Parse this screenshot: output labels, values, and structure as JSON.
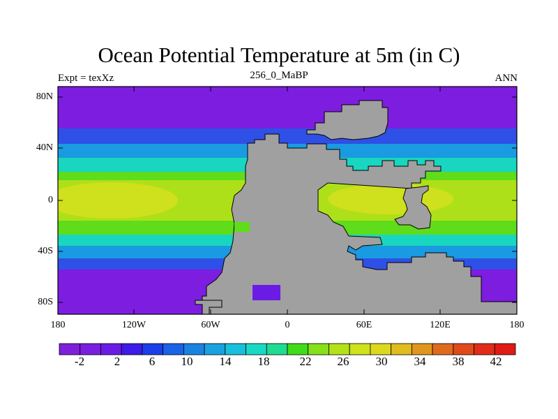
{
  "header": {
    "title": "Ocean Potential Temperature at 5m (in C)",
    "left_label": "Expt = texXz",
    "center_label": "256_0_MaBP",
    "right_label": "ANN"
  },
  "axes": {
    "lat_ticks": [
      "80N",
      "40N",
      "0",
      "40S",
      "80S"
    ],
    "lon_ticks": [
      "180",
      "120W",
      "60W",
      "0",
      "60E",
      "120E",
      "180"
    ]
  },
  "colorbar": {
    "labels": [
      "-2",
      "2",
      "6",
      "10",
      "14",
      "18",
      "22",
      "26",
      "30",
      "34",
      "38",
      "42"
    ],
    "colors": [
      "#7f1fdc",
      "#7a1ee0",
      "#6a1ce6",
      "#3d1be8",
      "#1b3ee8",
      "#1a62e6",
      "#1a82e3",
      "#1aa2e0",
      "#17c0dc",
      "#1ad9c4",
      "#1fdc92",
      "#3fdc1a",
      "#86e01a",
      "#b3e21a",
      "#cfe21c",
      "#dcd81e",
      "#e0bc1e",
      "#e0951e",
      "#e06a1c",
      "#e04a1a",
      "#e02c19",
      "#e01a16"
    ]
  },
  "map": {
    "land_color": "#a0a0a0",
    "ocean_palette": {
      "polar": "#7d1de0",
      "cold": "#6a1ce6",
      "subpolar": "#2f50e6",
      "cool": "#1a9ae0",
      "temperate": "#19d6c0",
      "warm": "#5fdc1a",
      "tropical": "#aee01a",
      "hot": "#cfe01c"
    }
  }
}
